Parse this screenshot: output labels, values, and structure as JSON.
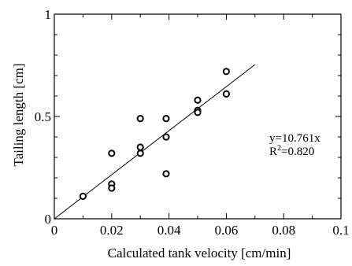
{
  "chart_data": {
    "type": "scatter",
    "xlabel": "Calculated tank velocity [cm/min]",
    "ylabel": "Tailing length [cm]",
    "xlim": [
      0,
      0.1
    ],
    "ylim": [
      0,
      1
    ],
    "x_ticks": [
      0,
      0.02,
      0.04,
      0.06,
      0.08,
      0.1
    ],
    "x_tick_labels": [
      "0",
      "0.02",
      "0.04",
      "0.06",
      "0.08",
      "0.1"
    ],
    "y_ticks": [
      0,
      0.5,
      1
    ],
    "y_tick_labels": [
      "0",
      "0.5",
      "1"
    ],
    "grid": false,
    "points": [
      {
        "x": 0.01,
        "y": 0.11
      },
      {
        "x": 0.02,
        "y": 0.32
      },
      {
        "x": 0.02,
        "y": 0.17
      },
      {
        "x": 0.02,
        "y": 0.15
      },
      {
        "x": 0.03,
        "y": 0.49
      },
      {
        "x": 0.03,
        "y": 0.35
      },
      {
        "x": 0.03,
        "y": 0.32
      },
      {
        "x": 0.039,
        "y": 0.49
      },
      {
        "x": 0.039,
        "y": 0.4
      },
      {
        "x": 0.039,
        "y": 0.22
      },
      {
        "x": 0.05,
        "y": 0.58
      },
      {
        "x": 0.05,
        "y": 0.53
      },
      {
        "x": 0.05,
        "y": 0.52
      },
      {
        "x": 0.06,
        "y": 0.72
      },
      {
        "x": 0.06,
        "y": 0.61
      },
      {
        "x": 0.06,
        "y": 0.61
      }
    ],
    "fit_line": {
      "slope": 10.761,
      "x_range": [
        0,
        0.07
      ]
    },
    "annotations": {
      "equation": "y=10.761x",
      "r2_label": "R",
      "r2_sup": "2",
      "r2_value": "=0.820"
    }
  }
}
